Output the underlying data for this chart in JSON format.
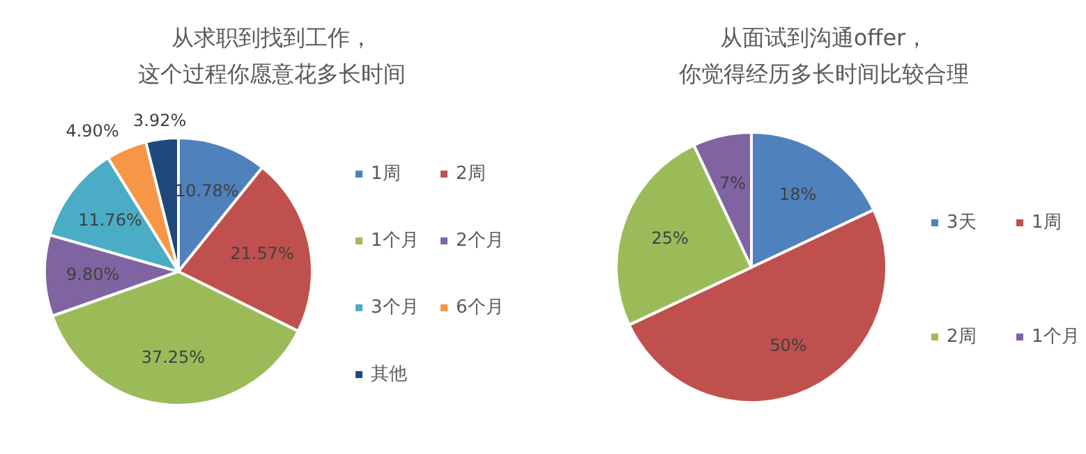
{
  "chart_data": [
    {
      "type": "pie",
      "title": "从求职到找到工作，",
      "subtitle": "这个过程你愿意花多长时间",
      "categories": [
        "1周",
        "2周",
        "1个月",
        "2个月",
        "3个月",
        "6个月",
        "其他"
      ],
      "values": [
        10.78,
        21.57,
        37.25,
        9.8,
        11.76,
        4.9,
        3.92
      ],
      "value_labels": [
        "10.78%",
        "21.57%",
        "37.25%",
        "9.80%",
        "11.76%",
        "4.90%",
        "3.92%"
      ],
      "colors": [
        "#4f81bd",
        "#c0504d",
        "#9bbb59",
        "#8064a2",
        "#4bacc6",
        "#f79646",
        "#1f497d"
      ],
      "legend": "right"
    },
    {
      "type": "pie",
      "title": "从面试到沟通offer，",
      "subtitle": "你觉得经历多长时间比较合理",
      "categories": [
        "3天",
        "1周",
        "2周",
        "1个月"
      ],
      "values": [
        18,
        50,
        25,
        7
      ],
      "value_labels": [
        "18%",
        "50%",
        "25%",
        "7%"
      ],
      "colors": [
        "#4f81bd",
        "#c0504d",
        "#9bbb59",
        "#8064a2"
      ],
      "legend": "right"
    }
  ]
}
